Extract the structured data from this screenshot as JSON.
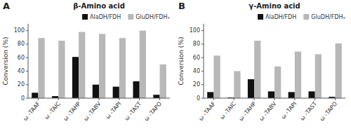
{
  "chart_data": [
    {
      "type": "bar",
      "title": "β-Amino acid",
      "annotations": [
        "A"
      ],
      "categories": [
        "ω -TAAF",
        "ω -TAIC",
        "ω -TAHP",
        "ω -TABV",
        "ω -TAPI",
        "ω -TAST",
        "ω -TAPO"
      ],
      "series": [
        {
          "name": "AlaDH/FDH",
          "color": "#111111",
          "values": [
            8,
            3,
            61,
            20,
            17,
            25,
            5
          ]
        },
        {
          "name": "GluDH/FDHₓ",
          "color": "#b8b8b8",
          "values": [
            89,
            85,
            98,
            95,
            89,
            100,
            50
          ]
        }
      ],
      "ylabel": "Conversion (%)",
      "ylim": [
        0,
        110
      ],
      "yticks": [
        0,
        20,
        40,
        60,
        80,
        100
      ],
      "grid": false,
      "legend": "upper-right"
    },
    {
      "type": "bar",
      "title": "γ-Amino acid",
      "annotations": [
        "B"
      ],
      "categories": [
        "ω -TAAF",
        "ω -TAIC",
        "ω -TAHP",
        "ω -TABV",
        "ω -TAPI",
        "ω -TAST",
        "ω -TAPO"
      ],
      "series": [
        {
          "name": "AlaDH/FDH",
          "color": "#111111",
          "values": [
            9,
            1,
            28,
            10,
            9,
            10,
            2
          ]
        },
        {
          "name": "GluDH/FDHₓ",
          "color": "#b8b8b8",
          "values": [
            63,
            40,
            85,
            47,
            69,
            65,
            81
          ]
        }
      ],
      "ylabel": "Conversion (%)",
      "ylim": [
        0,
        110
      ],
      "yticks": [
        0,
        20,
        40,
        60,
        80,
        100
      ],
      "grid": false,
      "legend": "upper-right"
    }
  ]
}
